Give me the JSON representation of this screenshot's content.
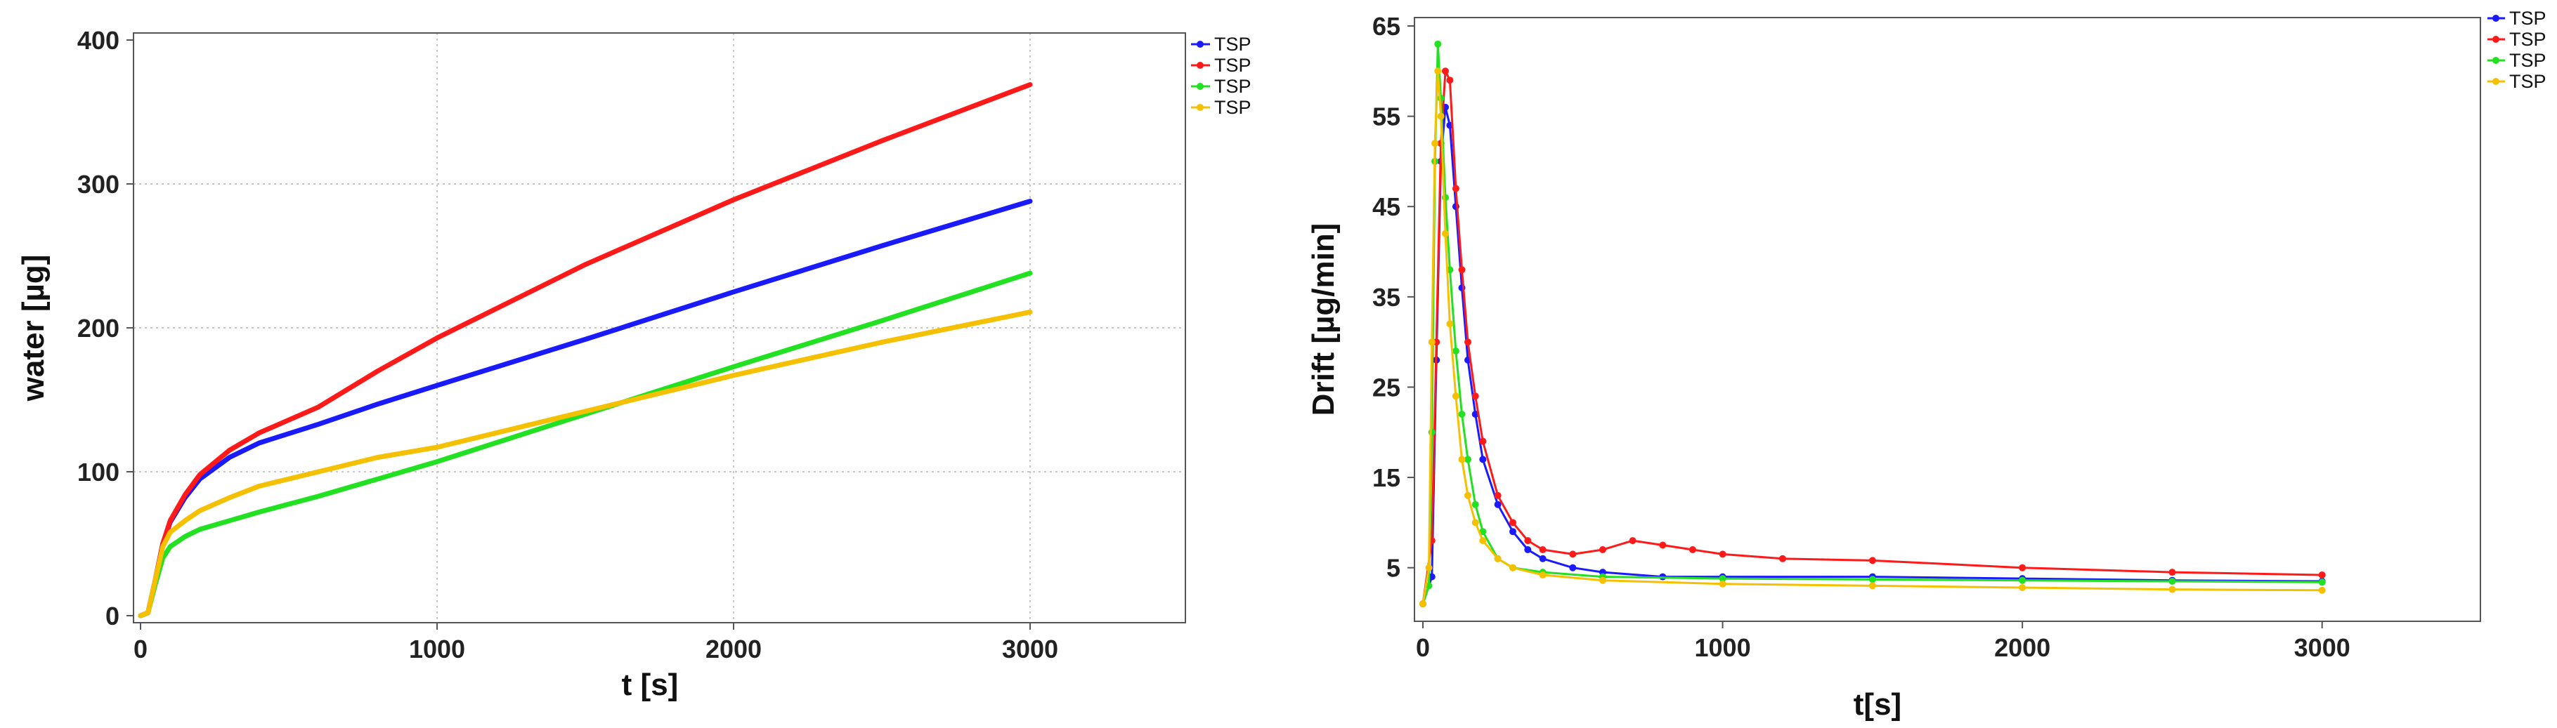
{
  "chart_data": [
    {
      "type": "line",
      "title": "",
      "xlabel": "t [s]",
      "ylabel": "water [µg]",
      "xlim": [
        0,
        3500
      ],
      "ylim": [
        0,
        400
      ],
      "x_ticks": [
        0,
        1000,
        2000,
        3000
      ],
      "y_ticks": [
        0,
        100,
        200,
        300,
        400
      ],
      "grid": true,
      "legend": "right",
      "series": [
        {
          "name": "TSP",
          "color": "#1a1aff",
          "x": [
            0,
            25,
            50,
            75,
            100,
            150,
            200,
            300,
            400,
            600,
            800,
            1000,
            1500,
            2000,
            2500,
            3000
          ],
          "y": [
            0,
            2,
            25,
            50,
            65,
            82,
            95,
            110,
            120,
            133,
            147,
            160,
            192,
            225,
            257,
            288
          ]
        },
        {
          "name": "TSP",
          "color": "#ff1a1a",
          "x": [
            0,
            25,
            50,
            75,
            100,
            150,
            200,
            300,
            400,
            600,
            800,
            1000,
            1500,
            2000,
            2500,
            3000
          ],
          "y": [
            0,
            2,
            25,
            50,
            66,
            84,
            98,
            115,
            127,
            145,
            170,
            193,
            244,
            289,
            330,
            369
          ]
        },
        {
          "name": "TSP",
          "color": "#22e022",
          "x": [
            0,
            25,
            50,
            75,
            100,
            150,
            200,
            300,
            400,
            600,
            800,
            1000,
            1500,
            2000,
            2500,
            3000
          ],
          "y": [
            0,
            2,
            22,
            40,
            48,
            55,
            60,
            66,
            72,
            83,
            95,
            107,
            140,
            173,
            205,
            238
          ]
        },
        {
          "name": "TSP",
          "color": "#f5c000",
          "x": [
            0,
            25,
            50,
            75,
            100,
            150,
            200,
            300,
            400,
            600,
            800,
            1000,
            1500,
            2000,
            2500,
            3000
          ],
          "y": [
            0,
            2,
            25,
            48,
            58,
            66,
            73,
            82,
            90,
            100,
            110,
            117,
            142,
            167,
            190,
            211
          ]
        }
      ]
    },
    {
      "type": "scatter",
      "title": "",
      "xlabel": "t[s]",
      "ylabel": "Drift  [µg/min]",
      "xlim": [
        0,
        3500
      ],
      "ylim": [
        0,
        65
      ],
      "x_ticks": [
        0,
        1000,
        2000,
        3000
      ],
      "y_ticks": [
        5,
        15,
        25,
        35,
        45,
        55,
        65
      ],
      "grid": false,
      "legend": "top-right",
      "series": [
        {
          "name": "TSP",
          "color": "#1a1aff",
          "points": [
            [
              0,
              1
            ],
            [
              30,
              4
            ],
            [
              45,
              28
            ],
            [
              60,
              50
            ],
            [
              75,
              56
            ],
            [
              90,
              54
            ],
            [
              110,
              45
            ],
            [
              130,
              36
            ],
            [
              150,
              28
            ],
            [
              175,
              22
            ],
            [
              200,
              17
            ],
            [
              250,
              12
            ],
            [
              300,
              9
            ],
            [
              350,
              7
            ],
            [
              400,
              6
            ],
            [
              500,
              5
            ],
            [
              600,
              4.5
            ],
            [
              800,
              4
            ],
            [
              1000,
              4
            ],
            [
              1500,
              4
            ],
            [
              2000,
              3.8
            ],
            [
              2500,
              3.6
            ],
            [
              3000,
              3.5
            ]
          ]
        },
        {
          "name": "TSP",
          "color": "#ff1a1a",
          "points": [
            [
              0,
              1
            ],
            [
              30,
              8
            ],
            [
              45,
              30
            ],
            [
              60,
              52
            ],
            [
              75,
              60
            ],
            [
              90,
              59
            ],
            [
              110,
              47
            ],
            [
              130,
              38
            ],
            [
              150,
              30
            ],
            [
              175,
              24
            ],
            [
              200,
              19
            ],
            [
              250,
              13
            ],
            [
              300,
              10
            ],
            [
              350,
              8
            ],
            [
              400,
              7
            ],
            [
              500,
              6.5
            ],
            [
              600,
              7
            ],
            [
              700,
              8
            ],
            [
              800,
              7.5
            ],
            [
              900,
              7
            ],
            [
              1000,
              6.5
            ],
            [
              1200,
              6
            ],
            [
              1500,
              5.8
            ],
            [
              2000,
              5
            ],
            [
              2500,
              4.5
            ],
            [
              3000,
              4.2
            ]
          ]
        },
        {
          "name": "TSP",
          "color": "#22e022",
          "points": [
            [
              0,
              1
            ],
            [
              20,
              3
            ],
            [
              30,
              20
            ],
            [
              40,
              50
            ],
            [
              50,
              63
            ],
            [
              60,
              57
            ],
            [
              75,
              46
            ],
            [
              90,
              38
            ],
            [
              110,
              29
            ],
            [
              130,
              22
            ],
            [
              150,
              17
            ],
            [
              175,
              12
            ],
            [
              200,
              9
            ],
            [
              250,
              6
            ],
            [
              300,
              5
            ],
            [
              400,
              4.5
            ],
            [
              600,
              4
            ],
            [
              1000,
              3.8
            ],
            [
              1500,
              3.7
            ],
            [
              2000,
              3.6
            ],
            [
              2500,
              3.5
            ],
            [
              3000,
              3.4
            ]
          ]
        },
        {
          "name": "TSP",
          "color": "#f5c000",
          "points": [
            [
              0,
              1
            ],
            [
              20,
              5
            ],
            [
              30,
              30
            ],
            [
              40,
              52
            ],
            [
              50,
              60
            ],
            [
              60,
              55
            ],
            [
              75,
              42
            ],
            [
              90,
              32
            ],
            [
              110,
              24
            ],
            [
              130,
              17
            ],
            [
              150,
              13
            ],
            [
              175,
              10
            ],
            [
              200,
              8
            ],
            [
              250,
              6
            ],
            [
              300,
              5
            ],
            [
              400,
              4.2
            ],
            [
              600,
              3.6
            ],
            [
              1000,
              3.2
            ],
            [
              1500,
              3
            ],
            [
              2000,
              2.8
            ],
            [
              2500,
              2.6
            ],
            [
              3000,
              2.5
            ]
          ]
        }
      ]
    }
  ]
}
